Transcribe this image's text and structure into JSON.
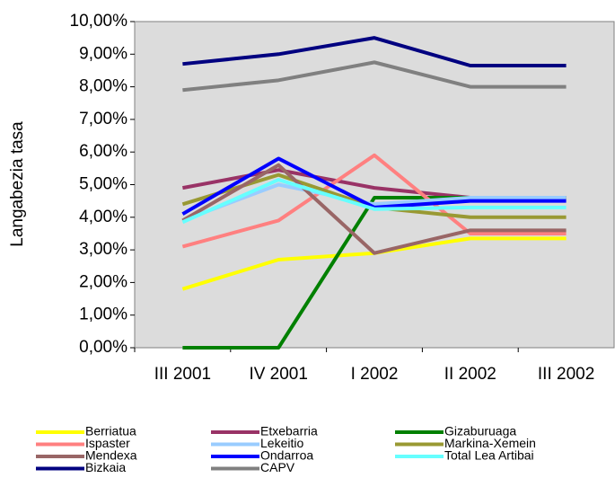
{
  "chart_data": {
    "type": "line",
    "ylabel": "Langabezia tasa",
    "categories": [
      "III 2001",
      "IV 2001",
      "I 2002",
      "II 2002",
      "III 2002"
    ],
    "ylim": [
      0,
      10
    ],
    "yticks": [
      {
        "value": 0,
        "label": "0,00%"
      },
      {
        "value": 1,
        "label": "1,00%"
      },
      {
        "value": 2,
        "label": "2,00%"
      },
      {
        "value": 3,
        "label": "3,00%"
      },
      {
        "value": 4,
        "label": "4,00%"
      },
      {
        "value": 5,
        "label": "5,00%"
      },
      {
        "value": 6,
        "label": "6,00%"
      },
      {
        "value": 7,
        "label": "7,00%"
      },
      {
        "value": 8,
        "label": "8,00%"
      },
      {
        "value": 9,
        "label": "9,00%"
      },
      {
        "value": 10,
        "label": "10,00%"
      }
    ],
    "grid": false,
    "legend": "bottom",
    "series": [
      {
        "name": "Berriatua",
        "color": "#ffff00",
        "values": [
          1.8,
          2.7,
          2.9,
          3.35,
          3.35
        ]
      },
      {
        "name": "Etxebarria",
        "color": "#993366",
        "values": [
          4.9,
          5.45,
          4.9,
          4.6,
          4.6
        ]
      },
      {
        "name": "Gizaburuaga",
        "color": "#008000",
        "values": [
          0,
          0,
          4.6,
          4.6,
          4.6
        ]
      },
      {
        "name": "Ispaster",
        "color": "#ff8080",
        "values": [
          3.1,
          3.9,
          5.9,
          3.5,
          3.5
        ]
      },
      {
        "name": "Lekeitio",
        "color": "#99ccff",
        "values": [
          3.9,
          5.0,
          4.4,
          4.6,
          4.6
        ]
      },
      {
        "name": "Markina-Xemein",
        "color": "#999933",
        "values": [
          4.4,
          5.3,
          4.3,
          4.0,
          4.0
        ]
      },
      {
        "name": "Mendexa",
        "color": "#996666",
        "values": [
          3.9,
          5.6,
          2.9,
          3.6,
          3.6
        ]
      },
      {
        "name": "Ondarroa",
        "color": "#0000ff",
        "values": [
          4.1,
          5.8,
          4.3,
          4.5,
          4.5
        ]
      },
      {
        "name": "Total Lea Artibai",
        "color": "#66ffff",
        "values": [
          3.85,
          5.15,
          4.25,
          4.3,
          4.3
        ]
      },
      {
        "name": "Bizkaia",
        "color": "#000080",
        "values": [
          8.7,
          9.0,
          9.5,
          8.65,
          8.65
        ]
      },
      {
        "name": "CAPV",
        "color": "#808080",
        "values": [
          7.9,
          8.2,
          8.75,
          8.0,
          8.0
        ]
      }
    ]
  }
}
